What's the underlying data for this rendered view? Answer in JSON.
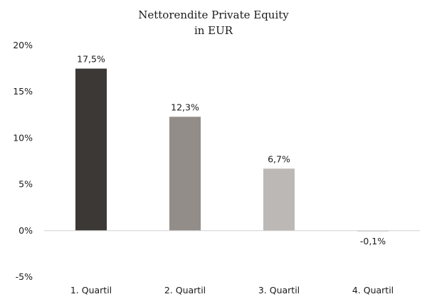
{
  "chart_data": {
    "type": "bar",
    "title": "Nettorendite Private Equity",
    "subtitle": "in EUR",
    "xlabel": "",
    "ylabel": "",
    "categories": [
      "1. Quartil",
      "2. Quartil",
      "3. Quartil",
      "4. Quartil"
    ],
    "values": [
      17.5,
      12.3,
      6.7,
      -0.1
    ],
    "data_labels": [
      "17,5%",
      "12,3%",
      "6,7%",
      "-0,1%"
    ],
    "bar_colors": [
      "#3b3835",
      "#928d88",
      "#bcb8b5",
      "#d9d6d4"
    ],
    "ylim": [
      -5,
      20
    ],
    "yticks": [
      20,
      15,
      10,
      5,
      0,
      -5
    ],
    "ytick_labels": [
      "20%",
      "15%",
      "10%",
      "5%",
      "0%",
      "-5%"
    ],
    "grid": false,
    "legend": "none"
  }
}
